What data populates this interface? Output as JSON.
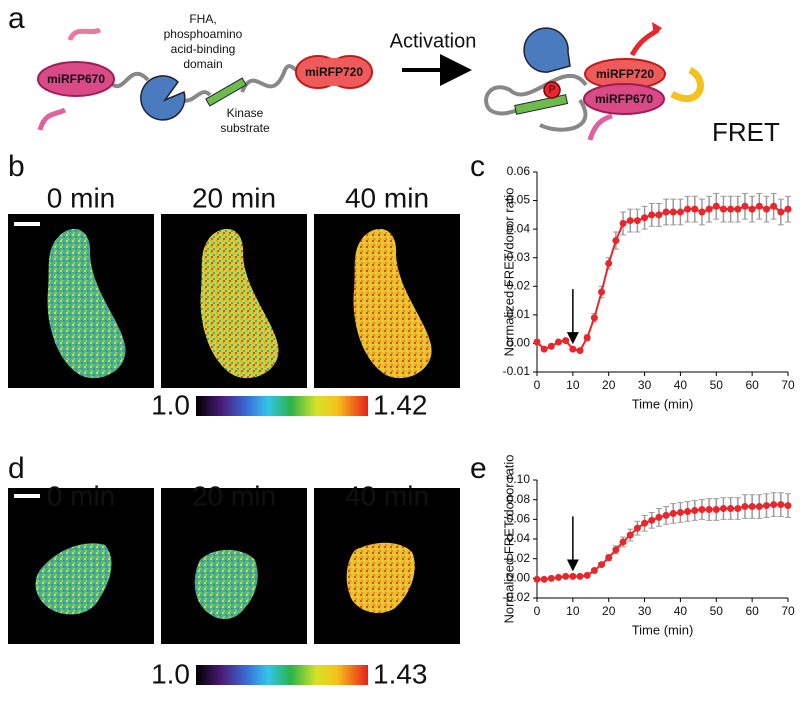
{
  "figure": {
    "panel_labels": [
      "a",
      "b",
      "c",
      "d",
      "e"
    ],
    "schematic": {
      "donor": "miRFP670",
      "fha": [
        "FHA,",
        "phosphoamino",
        "acid-binding",
        "domain"
      ],
      "substrate": [
        "Kinase",
        "substrate"
      ],
      "acceptor": "miRFP720",
      "activation": "Activation",
      "acceptor_active": "miRFP720",
      "donor_active": "miRFP670",
      "phospho": "P",
      "fret": "FRET"
    },
    "panel_b": {
      "times": [
        "0 min",
        "20 min",
        "40 min"
      ],
      "colorbar": [
        "1.0",
        "1.42"
      ]
    },
    "panel_d": {
      "times": [
        "0 min",
        "20 min",
        "40 min"
      ],
      "colorbar": [
        "1.0",
        "1.43"
      ]
    }
  },
  "chart_data": [
    {
      "type": "line",
      "xlabel": "Time (min)",
      "ylabel": "Normalized FRET/donor ratio",
      "xlim": [
        0,
        70
      ],
      "xticks": [
        0,
        10,
        20,
        30,
        40,
        50,
        60,
        70
      ],
      "ylim": [
        -0.01,
        0.06
      ],
      "yticks": [
        {
          "value": -0.01,
          "label": "-0.01"
        },
        {
          "value": 0,
          "label": "0.00"
        },
        {
          "value": 0.01,
          "label": "0.01"
        },
        {
          "value": 0.02,
          "label": "0.02"
        },
        {
          "value": 0.03,
          "label": "0.03"
        },
        {
          "value": 0.04,
          "label": "0.04"
        },
        {
          "value": 0.05,
          "label": "0.05"
        },
        {
          "value": 0.06,
          "label": "0.06"
        }
      ],
      "arrow_x": 10,
      "x": [
        0,
        2,
        4,
        6,
        8,
        10,
        12,
        14,
        16,
        18,
        20,
        22,
        24,
        26,
        28,
        30,
        32,
        34,
        36,
        38,
        40,
        42,
        44,
        46,
        48,
        50,
        52,
        54,
        56,
        58,
        60,
        62,
        64,
        66,
        68,
        70
      ],
      "series": [
        {
          "color": "#e8262b",
          "error_color": "#9a9a9a",
          "values": [
            0.0005,
            -0.002,
            -0.001,
            0.0005,
            0.001,
            -0.002,
            -0.0025,
            0.002,
            0.009,
            0.018,
            0.028,
            0.036,
            0.042,
            0.043,
            0.043,
            0.044,
            0.045,
            0.045,
            0.046,
            0.046,
            0.046,
            0.047,
            0.047,
            0.046,
            0.047,
            0.048,
            0.047,
            0.047,
            0.047,
            0.048,
            0.047,
            0.048,
            0.047,
            0.048,
            0.046,
            0.047
          ],
          "errors": [
            0.0005,
            0.0005,
            0.0005,
            0.0005,
            0.0005,
            0.0005,
            0.0005,
            0.001,
            0.0015,
            0.002,
            0.002,
            0.003,
            0.004,
            0.004,
            0.004,
            0.004,
            0.004,
            0.004,
            0.0045,
            0.0045,
            0.0045,
            0.0045,
            0.0045,
            0.0045,
            0.0045,
            0.0045,
            0.0045,
            0.0045,
            0.0045,
            0.0045,
            0.0045,
            0.0045,
            0.0045,
            0.0045,
            0.0045,
            0.0045
          ]
        }
      ]
    },
    {
      "type": "line",
      "xlabel": "Time (min)",
      "ylabel": "Normalized FRET/donor ratio",
      "xlim": [
        0,
        70
      ],
      "xticks": [
        0,
        10,
        20,
        30,
        40,
        50,
        60,
        70
      ],
      "ylim": [
        -0.02,
        0.1
      ],
      "yticks": [
        {
          "value": -0.02,
          "label": "-0.02"
        },
        {
          "value": 0,
          "label": "0.00"
        },
        {
          "value": 0.02,
          "label": "0.02"
        },
        {
          "value": 0.04,
          "label": "0.04"
        },
        {
          "value": 0.06,
          "label": "0.06"
        },
        {
          "value": 0.08,
          "label": "0.08"
        },
        {
          "value": 0.1,
          "label": "0.10"
        }
      ],
      "arrow_x": 10,
      "x": [
        0,
        2,
        4,
        6,
        8,
        10,
        12,
        14,
        16,
        18,
        20,
        22,
        24,
        26,
        28,
        30,
        32,
        34,
        36,
        38,
        40,
        42,
        44,
        46,
        48,
        50,
        52,
        54,
        56,
        58,
        60,
        62,
        64,
        66,
        68,
        70
      ],
      "series": [
        {
          "color": "#e8262b",
          "error_color": "#9a9a9a",
          "values": [
            -0.001,
            -0.001,
            0,
            0.001,
            0.002,
            0.002,
            0.002,
            0.003,
            0.008,
            0.014,
            0.021,
            0.029,
            0.037,
            0.044,
            0.051,
            0.056,
            0.059,
            0.062,
            0.064,
            0.066,
            0.067,
            0.068,
            0.069,
            0.07,
            0.07,
            0.07,
            0.071,
            0.071,
            0.071,
            0.073,
            0.073,
            0.073,
            0.074,
            0.075,
            0.075,
            0.074
          ],
          "errors": [
            0.001,
            0.001,
            0.001,
            0.001,
            0.001,
            0.001,
            0.001,
            0.001,
            0.002,
            0.002,
            0.003,
            0.004,
            0.005,
            0.006,
            0.007,
            0.008,
            0.008,
            0.009,
            0.009,
            0.01,
            0.01,
            0.01,
            0.01,
            0.01,
            0.011,
            0.011,
            0.011,
            0.011,
            0.011,
            0.012,
            0.012,
            0.012,
            0.012,
            0.012,
            0.012,
            0.012
          ]
        }
      ]
    }
  ]
}
